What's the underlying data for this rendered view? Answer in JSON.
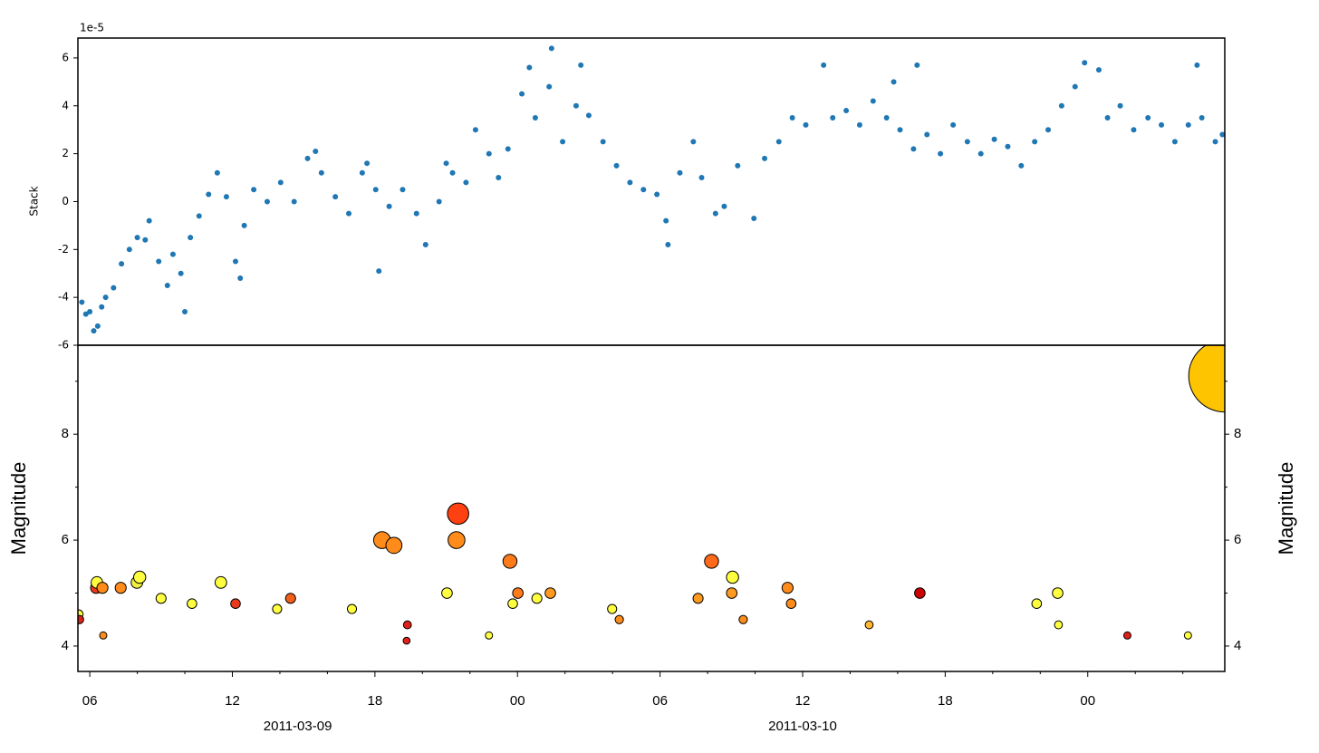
{
  "chart_data": [
    {
      "type": "scatter",
      "ylabel": "Stack",
      "offset_label": "1e-5",
      "color": "#1f77b4",
      "xlim": [
        "2011-03-09 05:30",
        "2011-03-11 05:46"
      ],
      "ylim": [
        -6,
        6.83
      ],
      "yticks": [
        -6,
        -4,
        -2,
        0,
        2,
        4,
        6
      ],
      "x": [
        "2011-03-09 05:40",
        "2011-03-09 05:50",
        "2011-03-09 06:00",
        "2011-03-09 06:10",
        "2011-03-09 06:20",
        "2011-03-09 06:30",
        "2011-03-09 06:40",
        "2011-03-09 07:00",
        "2011-03-09 07:20",
        "2011-03-09 07:40",
        "2011-03-09 08:00",
        "2011-03-09 08:20",
        "2011-03-09 08:30",
        "2011-03-09 08:54",
        "2011-03-09 09:16",
        "2011-03-09 09:30",
        "2011-03-09 09:50",
        "2011-03-09 10:00",
        "2011-03-09 10:14",
        "2011-03-09 10:36",
        "2011-03-09 11:00",
        "2011-03-09 11:22",
        "2011-03-09 11:45",
        "2011-03-09 12:08",
        "2011-03-09 12:20",
        "2011-03-09 12:30",
        "2011-03-09 12:54",
        "2011-03-09 13:28",
        "2011-03-09 14:02",
        "2011-03-09 14:36",
        "2011-03-09 15:10",
        "2011-03-09 15:30",
        "2011-03-09 15:45",
        "2011-03-09 16:20",
        "2011-03-09 16:54",
        "2011-03-09 17:28",
        "2011-03-09 17:40",
        "2011-03-09 18:02",
        "2011-03-09 18:10",
        "2011-03-09 18:36",
        "2011-03-09 19:10",
        "2011-03-09 19:45",
        "2011-03-09 20:08",
        "2011-03-09 20:42",
        "2011-03-09 21:00",
        "2011-03-09 21:16",
        "2011-03-09 21:50",
        "2011-03-09 22:14",
        "2011-03-09 22:48",
        "2011-03-09 23:12",
        "2011-03-09 23:36",
        "2011-03-10 00:11",
        "2011-03-10 00:30",
        "2011-03-10 00:45",
        "2011-03-10 01:20",
        "2011-03-10 01:26",
        "2011-03-10 01:54",
        "2011-03-10 02:28",
        "2011-03-10 02:40",
        "2011-03-10 03:00",
        "2011-03-10 03:36",
        "2011-03-10 04:10",
        "2011-03-10 04:44",
        "2011-03-10 05:18",
        "2011-03-10 05:52",
        "2011-03-10 06:15",
        "2011-03-10 06:20",
        "2011-03-10 06:50",
        "2011-03-10 07:24",
        "2011-03-10 07:45",
        "2011-03-10 08:20",
        "2011-03-10 08:42",
        "2011-03-10 09:16",
        "2011-03-10 09:57",
        "2011-03-10 10:24",
        "2011-03-10 11:00",
        "2011-03-10 11:34",
        "2011-03-10 12:08",
        "2011-03-10 12:53",
        "2011-03-10 13:16",
        "2011-03-10 13:50",
        "2011-03-10 14:24",
        "2011-03-10 14:58",
        "2011-03-10 15:32",
        "2011-03-10 15:50",
        "2011-03-10 16:06",
        "2011-03-10 16:40",
        "2011-03-10 16:49",
        "2011-03-10 17:14",
        "2011-03-10 17:48",
        "2011-03-10 18:20",
        "2011-03-10 18:56",
        "2011-03-10 19:30",
        "2011-03-10 20:04",
        "2011-03-10 20:38",
        "2011-03-10 21:12",
        "2011-03-10 21:46",
        "2011-03-10 22:20",
        "2011-03-10 22:54",
        "2011-03-10 23:28",
        "2011-03-10 23:52",
        "2011-03-11 00:28",
        "2011-03-11 00:50",
        "2011-03-11 01:22",
        "2011-03-11 01:56",
        "2011-03-11 02:32",
        "2011-03-11 03:06",
        "2011-03-11 03:40",
        "2011-03-11 04:14",
        "2011-03-11 04:36",
        "2011-03-11 04:48",
        "2011-03-11 05:22",
        "2011-03-11 05:40"
      ],
      "values": [
        -4.2,
        -4.7,
        -4.6,
        -5.4,
        -5.2,
        -4.4,
        -4.0,
        -3.6,
        -2.6,
        -2.0,
        -1.5,
        -1.6,
        -0.8,
        -2.5,
        -3.5,
        -2.2,
        -3.0,
        -4.6,
        -1.5,
        -0.6,
        0.3,
        1.2,
        0.2,
        -2.5,
        -3.2,
        -1.0,
        0.5,
        0.0,
        0.8,
        0.0,
        1.8,
        2.1,
        1.2,
        0.2,
        -0.5,
        1.2,
        1.6,
        0.5,
        -2.9,
        -0.2,
        0.5,
        -0.5,
        -1.8,
        0.0,
        1.6,
        1.2,
        0.8,
        3.0,
        2.0,
        1.0,
        2.2,
        4.5,
        5.6,
        3.5,
        4.8,
        6.4,
        2.5,
        4.0,
        5.7,
        3.6,
        2.5,
        1.5,
        0.8,
        0.5,
        0.3,
        -0.8,
        -1.8,
        1.2,
        2.5,
        1.0,
        -0.5,
        -0.2,
        1.5,
        -0.7,
        1.8,
        2.5,
        3.5,
        3.2,
        5.7,
        3.5,
        3.8,
        3.2,
        4.2,
        3.5,
        5.0,
        3.0,
        2.2,
        5.7,
        2.8,
        2.0,
        3.2,
        2.5,
        2.0,
        2.6,
        2.3,
        1.5,
        2.5,
        3.0,
        4.0,
        4.8,
        5.8,
        5.5,
        3.5,
        4.0,
        3.0,
        3.5,
        3.2,
        2.5,
        3.2,
        5.7,
        3.5,
        2.5,
        2.8
      ]
    },
    {
      "type": "bubble",
      "ylabel": "Magnitude",
      "xlim": [
        "2011-03-09 05:30",
        "2011-03-11 05:46"
      ],
      "ylim": [
        3.52,
        9.68
      ],
      "yticks": [
        4,
        6,
        8
      ],
      "yticks_minor": [
        5,
        7,
        9
      ],
      "xticks": [
        {
          "value": "2011-03-09 06:00",
          "label": "06"
        },
        {
          "value": "2011-03-09 12:00",
          "label": "12"
        },
        {
          "value": "2011-03-09 18:00",
          "label": "18"
        },
        {
          "value": "2011-03-10 00:00",
          "label": "00"
        },
        {
          "value": "2011-03-10 06:00",
          "label": "06"
        },
        {
          "value": "2011-03-10 12:00",
          "label": "12"
        },
        {
          "value": "2011-03-10 18:00",
          "label": "18"
        },
        {
          "value": "2011-03-11 00:00",
          "label": "00"
        }
      ],
      "xticks_minor": [
        "2011-03-09 08:00",
        "2011-03-09 10:00",
        "2011-03-09 14:00",
        "2011-03-09 16:00",
        "2011-03-09 20:00",
        "2011-03-09 22:00",
        "2011-03-10 02:00",
        "2011-03-10 04:00",
        "2011-03-10 08:00",
        "2011-03-10 10:00",
        "2011-03-10 14:00",
        "2011-03-10 16:00",
        "2011-03-10 20:00",
        "2011-03-10 22:00",
        "2011-03-11 02:00",
        "2011-03-11 04:00"
      ],
      "date_labels": [
        "2011-03-09",
        "2011-03-10"
      ],
      "x": [
        "2011-03-09 05:32",
        "2011-03-09 05:34",
        "2011-03-09 06:16",
        "2011-03-09 06:18",
        "2011-03-09 06:32",
        "2011-03-09 06:34",
        "2011-03-09 07:18",
        "2011-03-09 07:59",
        "2011-03-09 08:06",
        "2011-03-09 09:00",
        "2011-03-09 10:18",
        "2011-03-09 11:31",
        "2011-03-09 12:08",
        "2011-03-09 13:53",
        "2011-03-09 14:27",
        "2011-03-09 17:02",
        "2011-03-09 18:18",
        "2011-03-09 18:48",
        "2011-03-09 19:22",
        "2011-03-09 19:20",
        "2011-03-09 21:02",
        "2011-03-09 21:30",
        "2011-03-09 21:26",
        "2011-03-09 22:48",
        "2011-03-09 23:41",
        "2011-03-09 23:48",
        "2011-03-10 00:01",
        "2011-03-10 00:49",
        "2011-03-10 01:23",
        "2011-03-10 03:59",
        "2011-03-10 04:17",
        "2011-03-10 07:36",
        "2011-03-10 08:10",
        "2011-03-10 09:03",
        "2011-03-10 09:01",
        "2011-03-10 09:30",
        "2011-03-10 11:22",
        "2011-03-10 11:31",
        "2011-03-10 14:48",
        "2011-03-10 16:56",
        "2011-03-10 21:51",
        "2011-03-10 22:44",
        "2011-03-10 22:46",
        "2011-03-11 01:40",
        "2011-03-11 04:13",
        "2011-03-11 05:46"
      ],
      "values": [
        4.6,
        4.5,
        5.1,
        5.2,
        5.1,
        4.2,
        5.1,
        5.2,
        5.3,
        4.9,
        4.8,
        5.2,
        4.8,
        4.7,
        4.9,
        4.7,
        6.0,
        5.9,
        4.4,
        4.1,
        5.0,
        6.5,
        6.0,
        4.2,
        5.6,
        4.8,
        5.0,
        4.9,
        5.0,
        4.7,
        4.5,
        4.9,
        5.6,
        5.3,
        5.0,
        4.5,
        5.1,
        4.8,
        4.4,
        5.0,
        4.8,
        5.0,
        4.4,
        4.2,
        4.2,
        9.1
      ],
      "colors": [
        "#ffff40",
        "#e0201a",
        "#f03a1a",
        "#ffff40",
        "#ff8c1a",
        "#ff8c1a",
        "#ff8c1a",
        "#f0f040",
        "#ffff40",
        "#ffff40",
        "#ffff40",
        "#ffff40",
        "#e83a1a",
        "#ffff40",
        "#f0601a",
        "#ffff40",
        "#ff8c1a",
        "#ff8c1a",
        "#e0201a",
        "#e0201a",
        "#ffff40",
        "#ff4010",
        "#ff8c1a",
        "#ffff40",
        "#ff7a1a",
        "#ffff40",
        "#ff7a1a",
        "#ffff40",
        "#ff9a20",
        "#ffff40",
        "#ff8c1a",
        "#ff9a20",
        "#ff6a1a",
        "#ffff40",
        "#ff9a20",
        "#ff8c1a",
        "#ff8c1a",
        "#ff8c1a",
        "#ffb830",
        "#cc0000",
        "#ffff40",
        "#ffff40",
        "#ffff40",
        "#e0201a",
        "#ffff40",
        "#ffc400"
      ]
    }
  ]
}
